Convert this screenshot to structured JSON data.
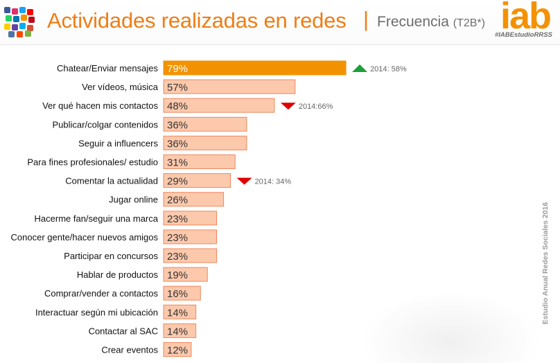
{
  "header": {
    "title": "Actividades realizadas en redes",
    "separator": "|",
    "subtitle": "Frecuencia",
    "subtitle_note": "(T2B*)",
    "brand": "iab",
    "hashtag": "#IABEstudioRRSS"
  },
  "side_note": "Estudio Anual Redes Sociales 2016",
  "colors": {
    "accent": "#ee7d16",
    "highlight_bar": "#f39200",
    "bar": "#fcc9ad",
    "bar_border": "#f0875a",
    "up_arrow": "#1e9f3a",
    "down_arrow": "#e00000"
  },
  "chart_data": {
    "type": "bar",
    "orientation": "horizontal",
    "unit": "%",
    "categories": [
      "Chatear/Enviar mensajes",
      "Ver vídeos, música",
      "Ver qué hacen mis contactos",
      "Publicar/colgar contenidos",
      "Seguir a influencers",
      "Para fines profesionales/ estudio",
      "Comentar la actualidad",
      "Jugar online",
      "Hacerme fan/seguir una marca",
      "Conocer gente/hacer nuevos amigos",
      "Participar en concursos",
      "Hablar de productos",
      "Comprar/vender a contactos",
      "Interactuar según mi ubicación",
      "Contactar al SAC",
      "Crear eventos"
    ],
    "values": [
      79,
      57,
      48,
      36,
      36,
      31,
      29,
      26,
      23,
      23,
      23,
      19,
      16,
      14,
      14,
      12
    ],
    "value_labels": [
      "79%",
      "57%",
      "48%",
      "36%",
      "36%",
      "31%",
      "29%",
      "26%",
      "23%",
      "23%",
      "23%",
      "19%",
      "16%",
      "14%",
      "14%",
      "12%"
    ],
    "highlight_index": 0,
    "comparisons": [
      {
        "index": 0,
        "direction": "up",
        "label": "2014: 58%"
      },
      {
        "index": 2,
        "direction": "down",
        "label": "2014:66%"
      },
      {
        "index": 6,
        "direction": "down",
        "label": "2014: 34%"
      }
    ],
    "xlim": [
      0,
      100
    ],
    "grid": false,
    "legend": "none"
  }
}
